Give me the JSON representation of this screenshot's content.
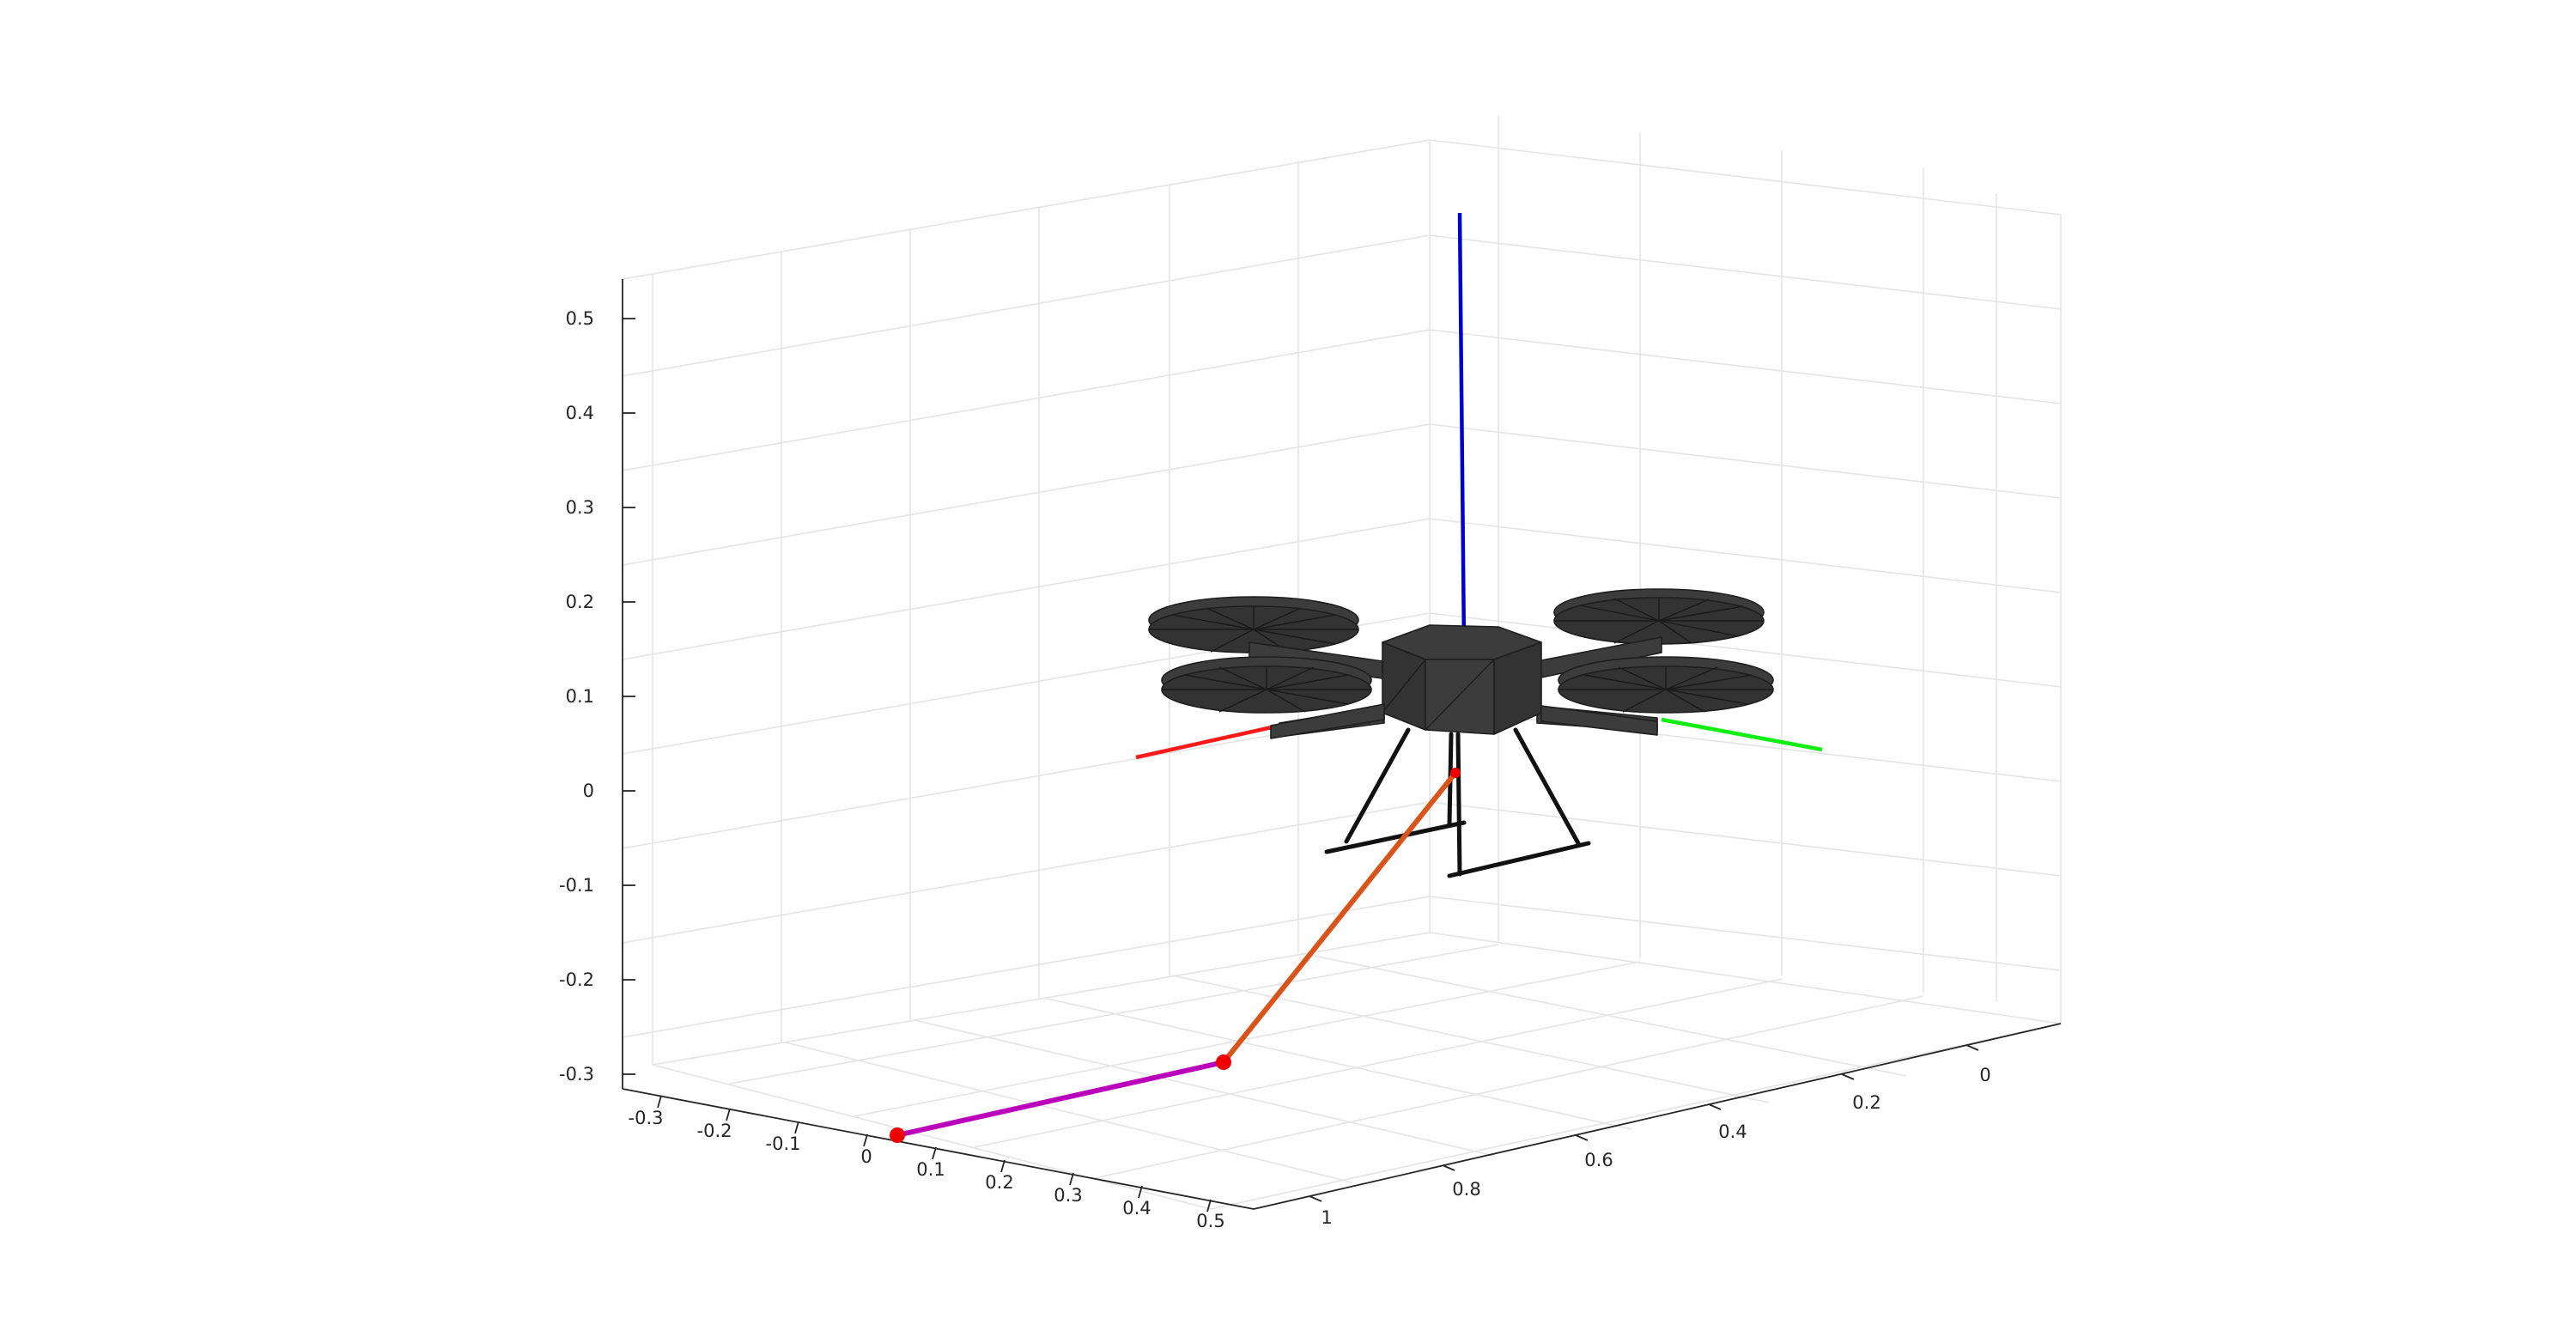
{
  "figure": {
    "z_ticks": [
      "0.5",
      "0.4",
      "0.3",
      "0.2",
      "0.1",
      "0",
      "-0.1",
      "-0.2",
      "-0.3"
    ],
    "x_ticks": [
      "-0.3",
      "-0.2",
      "-0.1",
      "0",
      "0.1",
      "0.2",
      "0.3",
      "0.4",
      "0.5"
    ],
    "y_ticks": [
      "1",
      "0.8",
      "0.6",
      "0.4",
      "0.2",
      "0"
    ]
  },
  "colors": {
    "z_axis": "#0000cc",
    "x_axis": "#ff1a1a",
    "y_axis": "#11ee11",
    "cable_upper": "#d9541a",
    "cable_lower": "#bb00bb",
    "joint": "#ee0000",
    "drone_body": "#3c3c3c",
    "landing_gear": "#111111"
  },
  "icons": [
    "quadrotor-drone",
    "pendulum-cable",
    "joint-marker"
  ]
}
